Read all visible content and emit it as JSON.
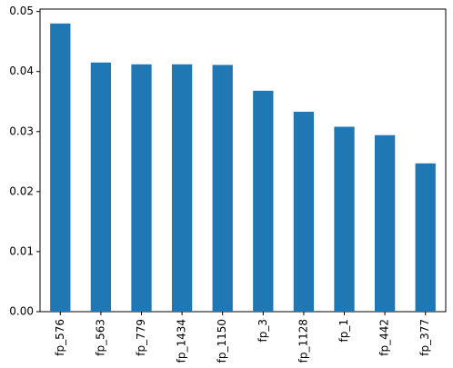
{
  "chart_data": {
    "type": "bar",
    "categories": [
      "fp_576",
      "fp_563",
      "fp_779",
      "fp_1434",
      "fp_1150",
      "fp_3",
      "fp_1128",
      "fp_1",
      "fp_442",
      "fp_377"
    ],
    "values": [
      0.048,
      0.0415,
      0.0412,
      0.0412,
      0.0411,
      0.0368,
      0.0333,
      0.0308,
      0.0294,
      0.0247
    ],
    "color": "#1f77b4",
    "ylim": [
      0,
      0.0504
    ],
    "yticks": [
      {
        "value": 0,
        "label": "0.00"
      },
      0.01,
      0.02,
      0.03,
      0.04,
      0.05
    ]
  }
}
